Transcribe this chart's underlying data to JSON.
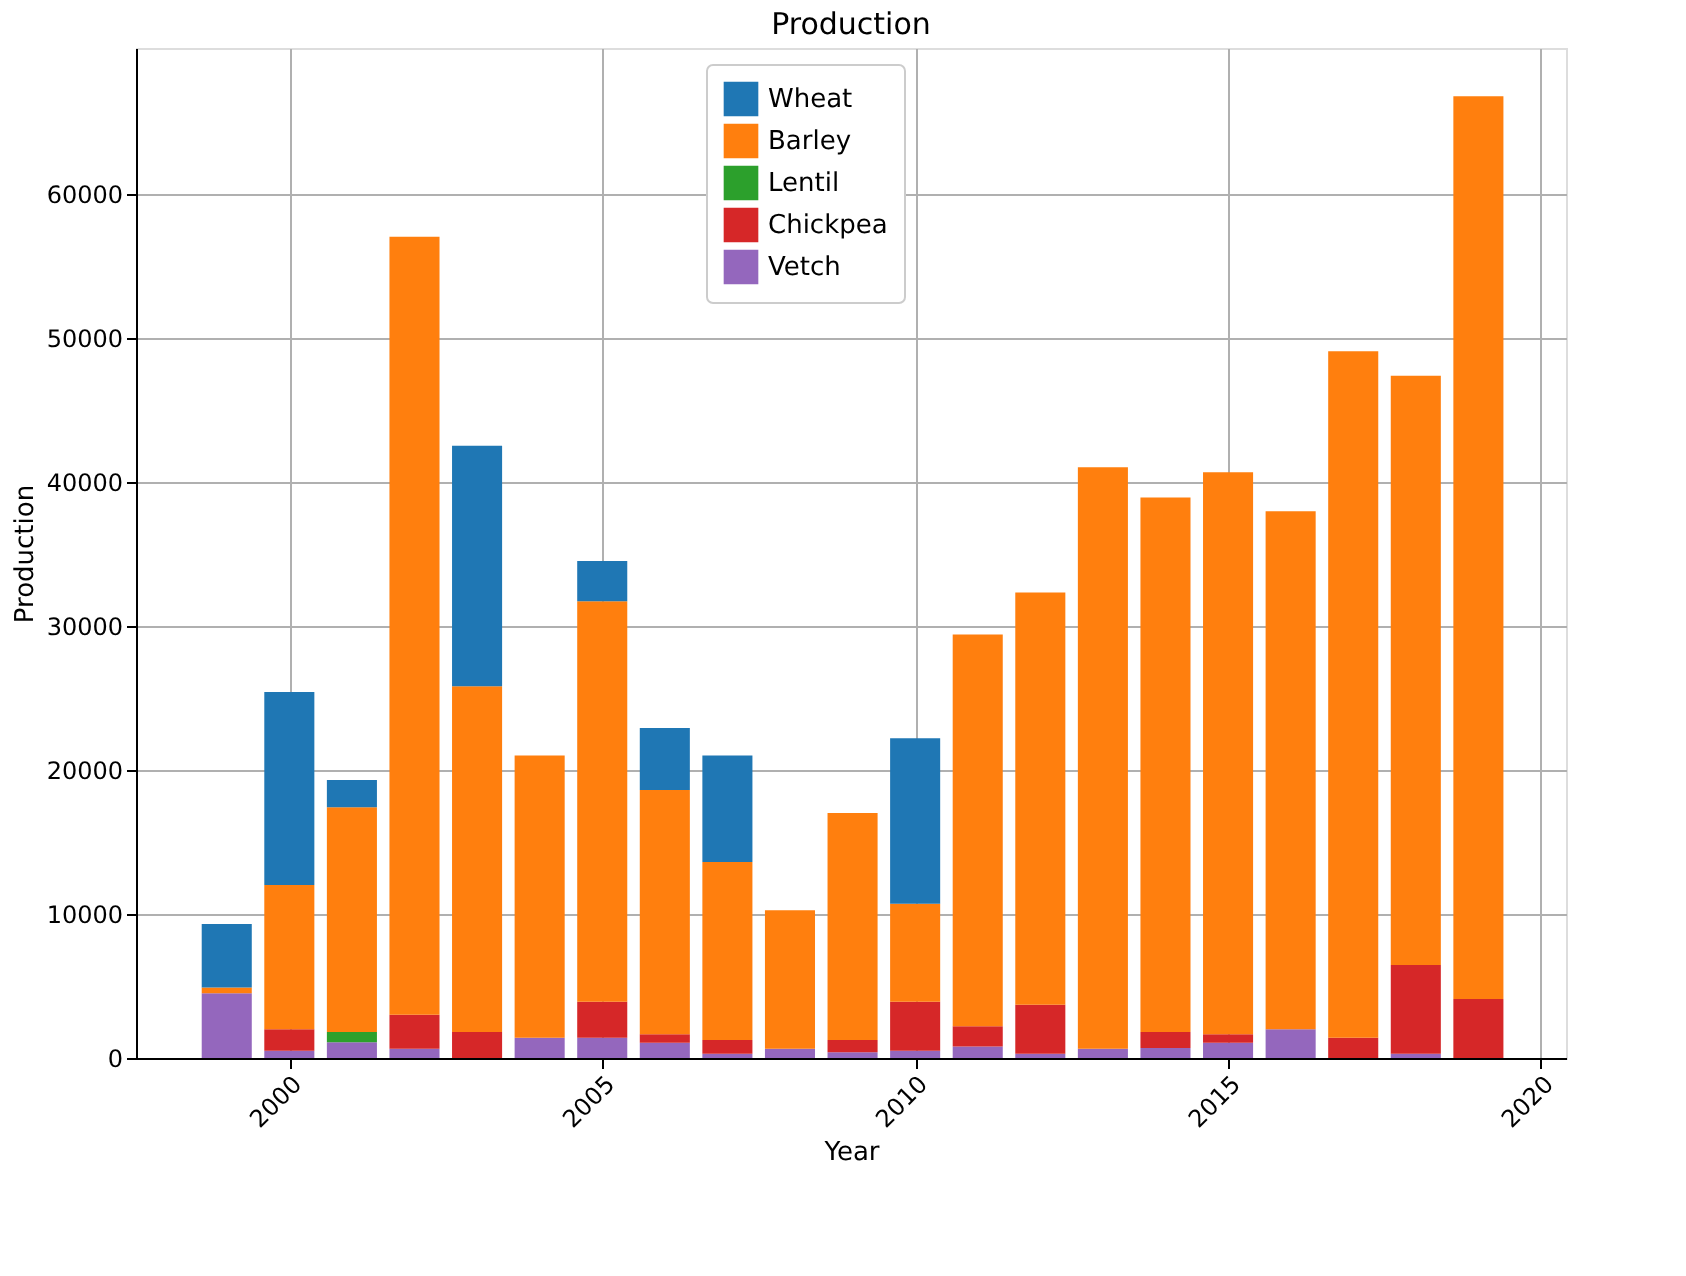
{
  "chart_data": {
    "type": "bar",
    "title": "Production",
    "xlabel": "Year",
    "ylabel": "Production",
    "stacked": true,
    "x": [
      1999,
      2000,
      2001,
      2002,
      2003,
      2004,
      2005,
      2006,
      2007,
      2008,
      2009,
      2010,
      2011,
      2012,
      2013,
      2014,
      2015,
      2016,
      2017,
      2018,
      2019
    ],
    "series": [
      {
        "name": "Vetch",
        "color": "#9467bd",
        "values": [
          4500,
          500,
          1100,
          650,
          0,
          1400,
          1400,
          1050,
          300,
          650,
          400,
          500,
          800,
          300,
          650,
          700,
          1050,
          2000,
          0,
          300,
          0
        ]
      },
      {
        "name": "Chickpea",
        "color": "#d62728",
        "values": [
          0,
          1500,
          0,
          2350,
          1800,
          0,
          2500,
          600,
          950,
          0,
          850,
          3400,
          1400,
          3400,
          0,
          1100,
          600,
          0,
          1400,
          6150,
          4100
        ]
      },
      {
        "name": "Lentil",
        "color": "#2ca02c",
        "values": [
          0,
          0,
          700,
          0,
          0,
          0,
          0,
          0,
          0,
          0,
          0,
          0,
          0,
          0,
          0,
          0,
          0,
          0,
          0,
          0,
          0
        ]
      },
      {
        "name": "Barley",
        "color": "#ff7f0e",
        "values": [
          400,
          10000,
          15600,
          54000,
          24000,
          19600,
          27800,
          16950,
          12350,
          9600,
          15750,
          6800,
          27200,
          28600,
          40350,
          37100,
          39000,
          35950,
          47650,
          40900,
          62650
        ]
      },
      {
        "name": "Wheat",
        "color": "#1f77b4",
        "values": [
          4400,
          13400,
          1900,
          0,
          16700,
          0,
          2800,
          4300,
          7400,
          0,
          0,
          11500,
          0,
          0,
          0,
          0,
          0,
          0,
          0,
          0,
          0
        ]
      }
    ],
    "xlim": [
      1997.55,
      2020.4
    ],
    "xticks": [
      2000,
      2005,
      2010,
      2015,
      2020
    ],
    "ylim": [
      0,
      70100
    ],
    "yticks": [
      0,
      10000,
      20000,
      30000,
      40000,
      50000,
      60000
    ],
    "grid": true,
    "legend": "top"
  }
}
